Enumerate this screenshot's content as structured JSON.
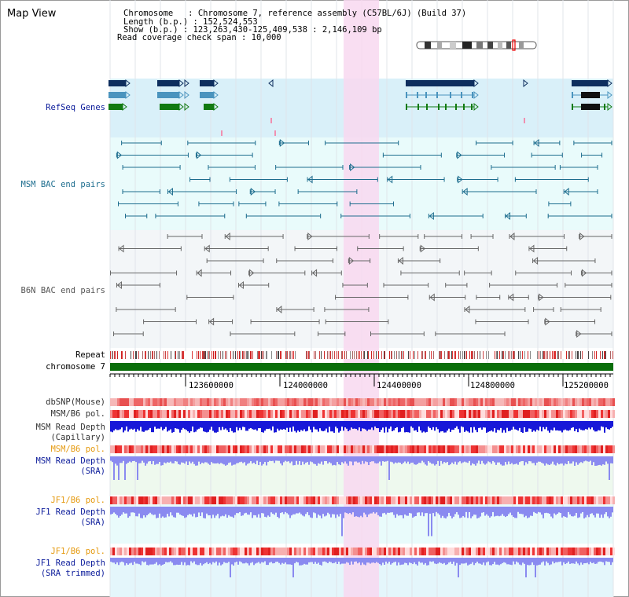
{
  "page": {
    "title": "Map View"
  },
  "info": {
    "chromosome": "Chromosome   : Chromosome 7, reference assembly (C57BL/6J) (Build 37)",
    "length": "Length (b.p.) : 152,524,553",
    "show": "Show (b.p.) : 123,263,430-125,409,538 : 2,146,109 bp",
    "coverage": "Read coverage check span : 10,000"
  },
  "tracks": {
    "refseq": "RefSeq Genes",
    "msm_bac": "MSM BAC end pairs",
    "b6n_bac": "B6N BAC end pairs",
    "repeat": "Repeat",
    "chromosome": "chromosome 7",
    "dbsnp": "dbSNP(Mouse)",
    "msm_b6_pol": "MSM/B6 pol.",
    "msm_depth_cap_1": "MSM Read Depth",
    "msm_depth_cap_2": "(Capillary)",
    "msm_b6_pol_2": "MSM/B6 pol.",
    "msm_depth_sra_1": "MSM Read Depth",
    "msm_depth_sra_2": "(SRA)",
    "jf1_b6_pol": "JF1/B6 pol.",
    "jf1_depth_sra_1": "JF1 Read Depth",
    "jf1_depth_sra_2": "(SRA)",
    "jf1_b6_pol_2": "JF1/B6 pol.",
    "jf1_depth_trim_1": "JF1 Read Depth",
    "jf1_depth_trim_2": "(SRA trimmed)"
  },
  "ruler": {
    "ticks": [
      "123600000",
      "124000000",
      "124400000",
      "124800000",
      "125200000"
    ]
  },
  "colors": {
    "refseq_bg": "#d9f0f9",
    "bac_bg": "#e9fbfb",
    "b6n_bg": "#f2f6f8",
    "highlight": "#f8d8f0",
    "gene_dark": "#0e2e5e",
    "gene_mid": "#4a94be",
    "gene_green": "#117a11",
    "msm_line": "#1d6d8e",
    "b6n_line": "#666666",
    "chrom_bar": "#0a6e0a",
    "label_blue": "#0a1a9a",
    "label_teal": "#1d6d8e",
    "label_orange": "#e59a10",
    "depth_blue": "#1818d8",
    "depth_light": "#8a8af0"
  }
}
